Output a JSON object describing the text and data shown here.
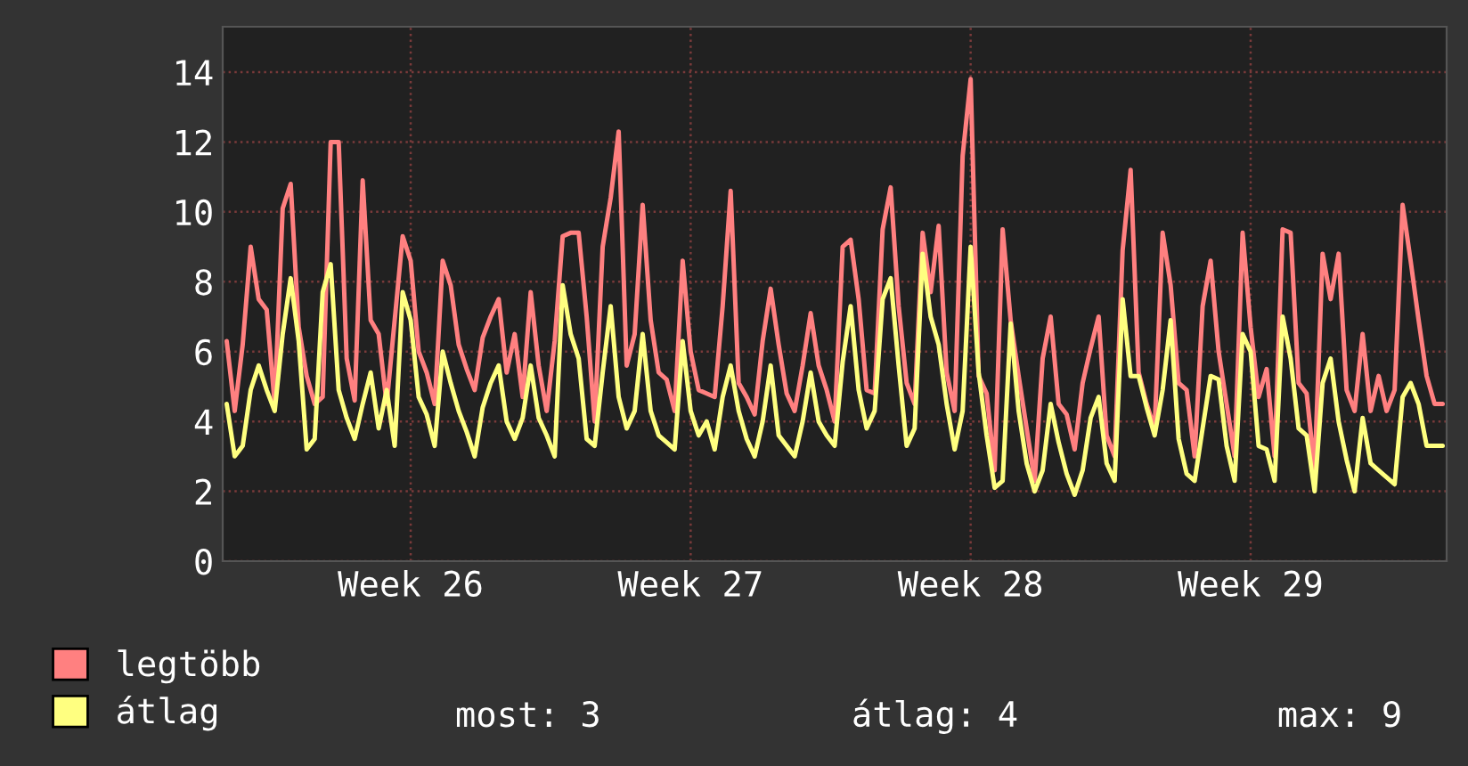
{
  "chart_data": {
    "type": "line",
    "categories": [
      null,
      null,
      null,
      null,
      null,
      null,
      null,
      null,
      null,
      null,
      null,
      null,
      null,
      null,
      null,
      null,
      null,
      null,
      null,
      null,
      null,
      null,
      null,
      "Week 26",
      null,
      null,
      null,
      null,
      null,
      null,
      null,
      null,
      null,
      null,
      null,
      null,
      null,
      null,
      null,
      null,
      null,
      null,
      null,
      null,
      null,
      null,
      null,
      null,
      null,
      null,
      null,
      null,
      null,
      null,
      null,
      null,
      null,
      null,
      "Week 27",
      null,
      null,
      null,
      null,
      null,
      null,
      null,
      null,
      null,
      null,
      null,
      null,
      null,
      null,
      null,
      null,
      null,
      null,
      null,
      null,
      null,
      null,
      null,
      null,
      null,
      null,
      null,
      null,
      null,
      null,
      null,
      null,
      null,
      null,
      "Week 28",
      null,
      null,
      null,
      null,
      null,
      null,
      null,
      null,
      null,
      null,
      null,
      null,
      null,
      null,
      null,
      null,
      null,
      null,
      null,
      null,
      null,
      null,
      null,
      null,
      null,
      null,
      null,
      null,
      null,
      null,
      null,
      null,
      null,
      null,
      "Week 29",
      null,
      null,
      null,
      null,
      null,
      null,
      null,
      null,
      null,
      null,
      null,
      null,
      null,
      null,
      null,
      null,
      null,
      null,
      null,
      null,
      null,
      null,
      null,
      null
    ],
    "ylim": [
      0,
      15.3
    ],
    "yticks": [
      0,
      2,
      4,
      6,
      8,
      10,
      12,
      14
    ],
    "grid": true,
    "legend": "bottom",
    "line_style": "solid",
    "annotations": [
      "most: 3",
      "átlag: 4",
      "max: 9"
    ],
    "series": [
      {
        "name": "legtöbb",
        "color": "#ff8080",
        "values": [
          6.3,
          4.3,
          6.2,
          9.0,
          7.5,
          7.2,
          4.5,
          10.1,
          10.8,
          6.7,
          5.3,
          4.5,
          4.7,
          12.0,
          12.0,
          5.8,
          4.6,
          10.9,
          6.9,
          6.5,
          4.5,
          6.9,
          9.3,
          8.6,
          6.0,
          5.4,
          4.5,
          8.6,
          7.9,
          6.2,
          5.5,
          4.9,
          6.4,
          7.0,
          7.5,
          5.4,
          6.5,
          4.7,
          7.7,
          5.6,
          4.3,
          6.3,
          9.3,
          9.4,
          9.4,
          7.0,
          4.0,
          9.0,
          10.4,
          12.3,
          5.6,
          6.5,
          10.2,
          6.9,
          5.4,
          5.2,
          4.3,
          8.6,
          6.0,
          4.9,
          4.8,
          4.7,
          7.3,
          10.6,
          5.1,
          4.7,
          4.2,
          6.3,
          7.8,
          6.2,
          4.8,
          4.3,
          5.6,
          7.1,
          5.6,
          4.9,
          4.0,
          9.0,
          9.2,
          7.5,
          4.9,
          4.8,
          9.5,
          10.7,
          7.3,
          5.1,
          4.5,
          9.4,
          7.7,
          9.6,
          5.4,
          4.3,
          11.6,
          13.8,
          5.3,
          4.8,
          2.6,
          9.5,
          6.9,
          5.3,
          3.8,
          2.3,
          5.8,
          7.0,
          4.5,
          4.2,
          3.2,
          5.1,
          6.1,
          7.0,
          3.6,
          3.0,
          8.9,
          11.2,
          5.4,
          4.5,
          3.8,
          9.4,
          7.9,
          5.1,
          4.9,
          3.0,
          7.3,
          8.6,
          6.0,
          4.5,
          3.0,
          9.4,
          6.7,
          4.7,
          5.5,
          3.0,
          9.5,
          9.4,
          5.1,
          4.8,
          2.6,
          8.8,
          7.5,
          8.8,
          4.9,
          4.3,
          6.5,
          4.3,
          5.3,
          4.3,
          4.9,
          10.2,
          8.6,
          6.9,
          5.3,
          4.5,
          4.5
        ]
      },
      {
        "name": "átlag",
        "color": "#ffff80",
        "values": [
          4.5,
          3.0,
          3.3,
          4.9,
          5.6,
          4.9,
          4.3,
          6.5,
          8.1,
          6.3,
          3.2,
          3.5,
          7.7,
          8.5,
          4.9,
          4.1,
          3.5,
          4.5,
          5.4,
          3.8,
          4.9,
          3.3,
          7.7,
          6.9,
          4.7,
          4.2,
          3.3,
          6.0,
          5.1,
          4.3,
          3.7,
          3.0,
          4.4,
          5.1,
          5.6,
          4.0,
          3.5,
          4.1,
          5.6,
          4.1,
          3.6,
          3.0,
          7.9,
          6.5,
          5.8,
          3.5,
          3.3,
          5.4,
          7.3,
          4.7,
          3.8,
          4.3,
          6.5,
          4.3,
          3.6,
          3.4,
          3.2,
          6.3,
          4.3,
          3.6,
          4.0,
          3.2,
          4.7,
          5.6,
          4.3,
          3.5,
          3.0,
          4.0,
          5.6,
          3.6,
          3.3,
          3.0,
          4.0,
          5.4,
          4.0,
          3.6,
          3.3,
          5.7,
          7.3,
          4.9,
          3.8,
          4.3,
          7.5,
          8.1,
          5.6,
          3.3,
          3.8,
          8.8,
          7.0,
          6.2,
          4.5,
          3.2,
          4.3,
          9.0,
          5.4,
          3.6,
          2.1,
          2.3,
          6.8,
          4.3,
          2.8,
          2.0,
          2.6,
          4.5,
          3.4,
          2.5,
          1.9,
          2.6,
          4.1,
          4.7,
          2.8,
          2.3,
          7.5,
          5.3,
          5.3,
          4.4,
          3.6,
          4.9,
          6.9,
          3.5,
          2.5,
          2.3,
          3.8,
          5.3,
          5.2,
          3.3,
          2.3,
          6.5,
          6.0,
          3.3,
          3.2,
          2.3,
          7.0,
          5.8,
          3.8,
          3.6,
          2.0,
          5.1,
          5.8,
          4.0,
          2.9,
          2.0,
          4.1,
          2.8,
          2.6,
          2.4,
          2.2,
          4.7,
          5.1,
          4.5,
          3.3,
          3.3,
          3.3
        ]
      }
    ]
  }
}
